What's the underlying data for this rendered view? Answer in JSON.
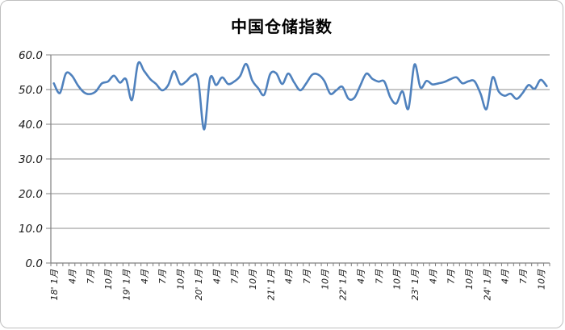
{
  "chart": {
    "colors": {
      "line": "#4F81BD",
      "grid": "#8c8c8c",
      "axis": "#808080",
      "tick": "#808080",
      "text": "#1a1a1a",
      "frame_border": "#bfbfbf",
      "background": "#ffffff"
    }
  },
  "chart_data": {
    "type": "line",
    "title": "中国仓储指数",
    "xlabel": "",
    "ylabel": "",
    "ylim": [
      0,
      60
    ],
    "y_tick_step": 10,
    "y_tick_labels": [
      "0.0",
      "10.0",
      "20.0",
      "30.0",
      "40.0",
      "50.0",
      "60.0"
    ],
    "grid": "horizontal",
    "legend": "none",
    "smooth_line": true,
    "x_interval": "month",
    "x_start": "2018-01",
    "x_end": "2024-11",
    "x_label_every": 3,
    "x_tick_labels": [
      "18' 1月",
      "4月",
      "7月",
      "10月",
      "19' 1月",
      "4月",
      "7月",
      "10月",
      "20' 1月",
      "4月",
      "7月",
      "10月",
      "21' 1月",
      "4月",
      "7月",
      "10月",
      "22' 1月",
      "4月",
      "7月",
      "10月",
      "23' 1月",
      "4月",
      "7月",
      "10月",
      "24' 1月",
      "4月",
      "7月",
      "10月"
    ],
    "series": [
      {
        "name": "中国仓储指数",
        "values": [
          51.8,
          49.0,
          54.6,
          54.0,
          51.2,
          49.2,
          48.7,
          49.5,
          51.8,
          52.3,
          54.0,
          52.0,
          53.0,
          47.0,
          57.5,
          55.4,
          53.1,
          51.6,
          49.8,
          51.2,
          55.3,
          51.6,
          52.3,
          54.0,
          53.0,
          38.5,
          53.3,
          51.3,
          53.5,
          51.6,
          52.3,
          53.9,
          57.4,
          52.7,
          50.4,
          48.5,
          54.5,
          54.7,
          51.6,
          54.6,
          52.0,
          49.8,
          51.8,
          54.3,
          54.3,
          52.5,
          48.8,
          49.8,
          50.8,
          47.4,
          47.6,
          51.2,
          54.6,
          53.1,
          52.3,
          52.3,
          47.7,
          46.0,
          49.5,
          44.5,
          57.2,
          50.6,
          52.5,
          51.5,
          51.8,
          52.2,
          53.0,
          53.5,
          51.8,
          52.4,
          52.4,
          48.8,
          44.4,
          53.5,
          49.5,
          48.2,
          48.8,
          47.3,
          49.0,
          51.3,
          50.2,
          52.8,
          51.0
        ]
      }
    ]
  }
}
